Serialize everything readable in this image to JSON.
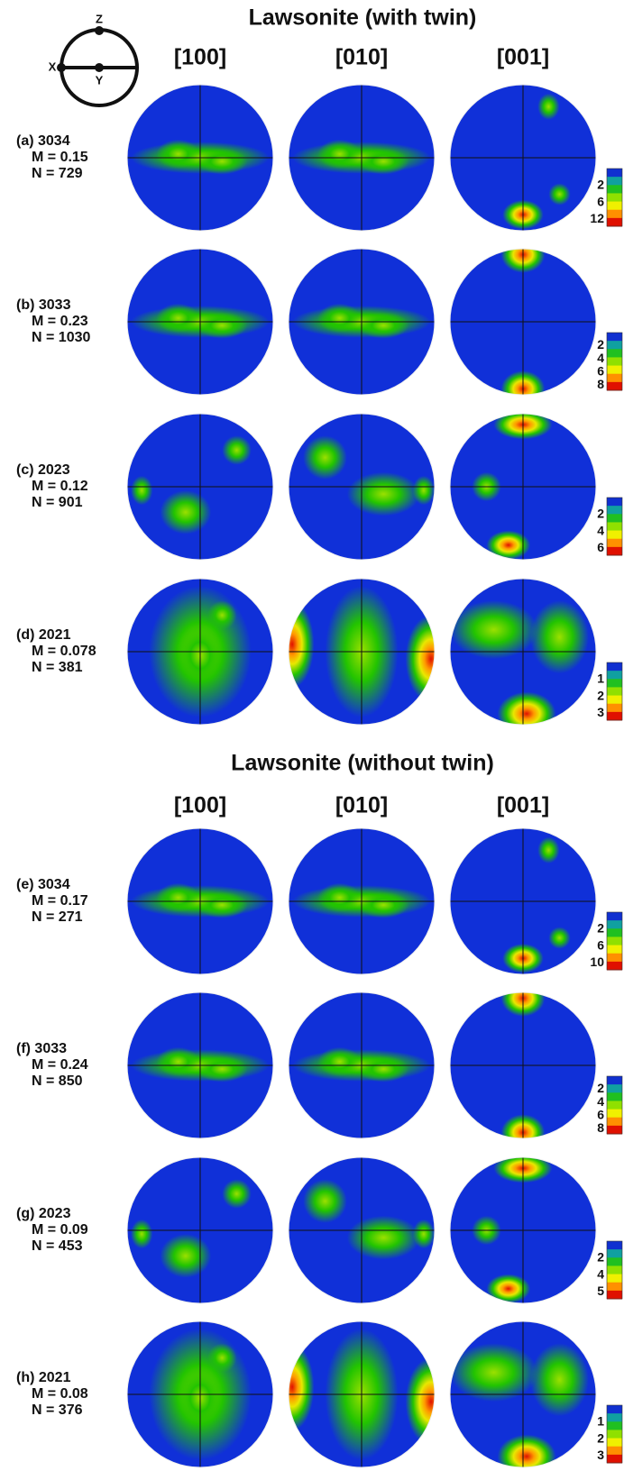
{
  "axes": {
    "z": "Z",
    "x": "X",
    "y": "Y"
  },
  "sections": [
    {
      "title": "Lawsonite (with twin)",
      "columns": [
        "[100]",
        "[010]",
        "[001]"
      ],
      "rows": [
        {
          "label": "(a) 3034",
          "m": "M = 0.15",
          "n": "N = 729",
          "scale": [
            "2",
            "6",
            "12"
          ]
        },
        {
          "label": "(b) 3033",
          "m": "M = 0.23",
          "n": "N = 1030",
          "scale": [
            "2",
            "4",
            "6",
            "8"
          ]
        },
        {
          "label": "(c) 2023",
          "m": "M = 0.12",
          "n": "N = 901",
          "scale": [
            "2",
            "4",
            "6"
          ]
        },
        {
          "label": "(d) 2021",
          "m": "M = 0.078",
          "n": "N = 381",
          "scale": [
            "1",
            "2",
            "3"
          ]
        }
      ]
    },
    {
      "title": "Lawsonite (without  twin)",
      "columns": [
        "[100]",
        "[010]",
        "[001]"
      ],
      "rows": [
        {
          "label": "(e) 3034",
          "m": "M = 0.17",
          "n": "N = 271",
          "scale": [
            "2",
            "6",
            "10"
          ]
        },
        {
          "label": "(f) 3033",
          "m": "M = 0.24",
          "n": "N = 850",
          "scale": [
            "2",
            "4",
            "6",
            "8"
          ]
        },
        {
          "label": "(g) 2023",
          "m": "M = 0.09",
          "n": "N = 453",
          "scale": [
            "2",
            "4",
            "5"
          ]
        },
        {
          "label": "(h) 2021",
          "m": "M = 0.08",
          "n": "N = 376",
          "scale": [
            "1",
            "2",
            "3"
          ]
        }
      ]
    }
  ]
}
